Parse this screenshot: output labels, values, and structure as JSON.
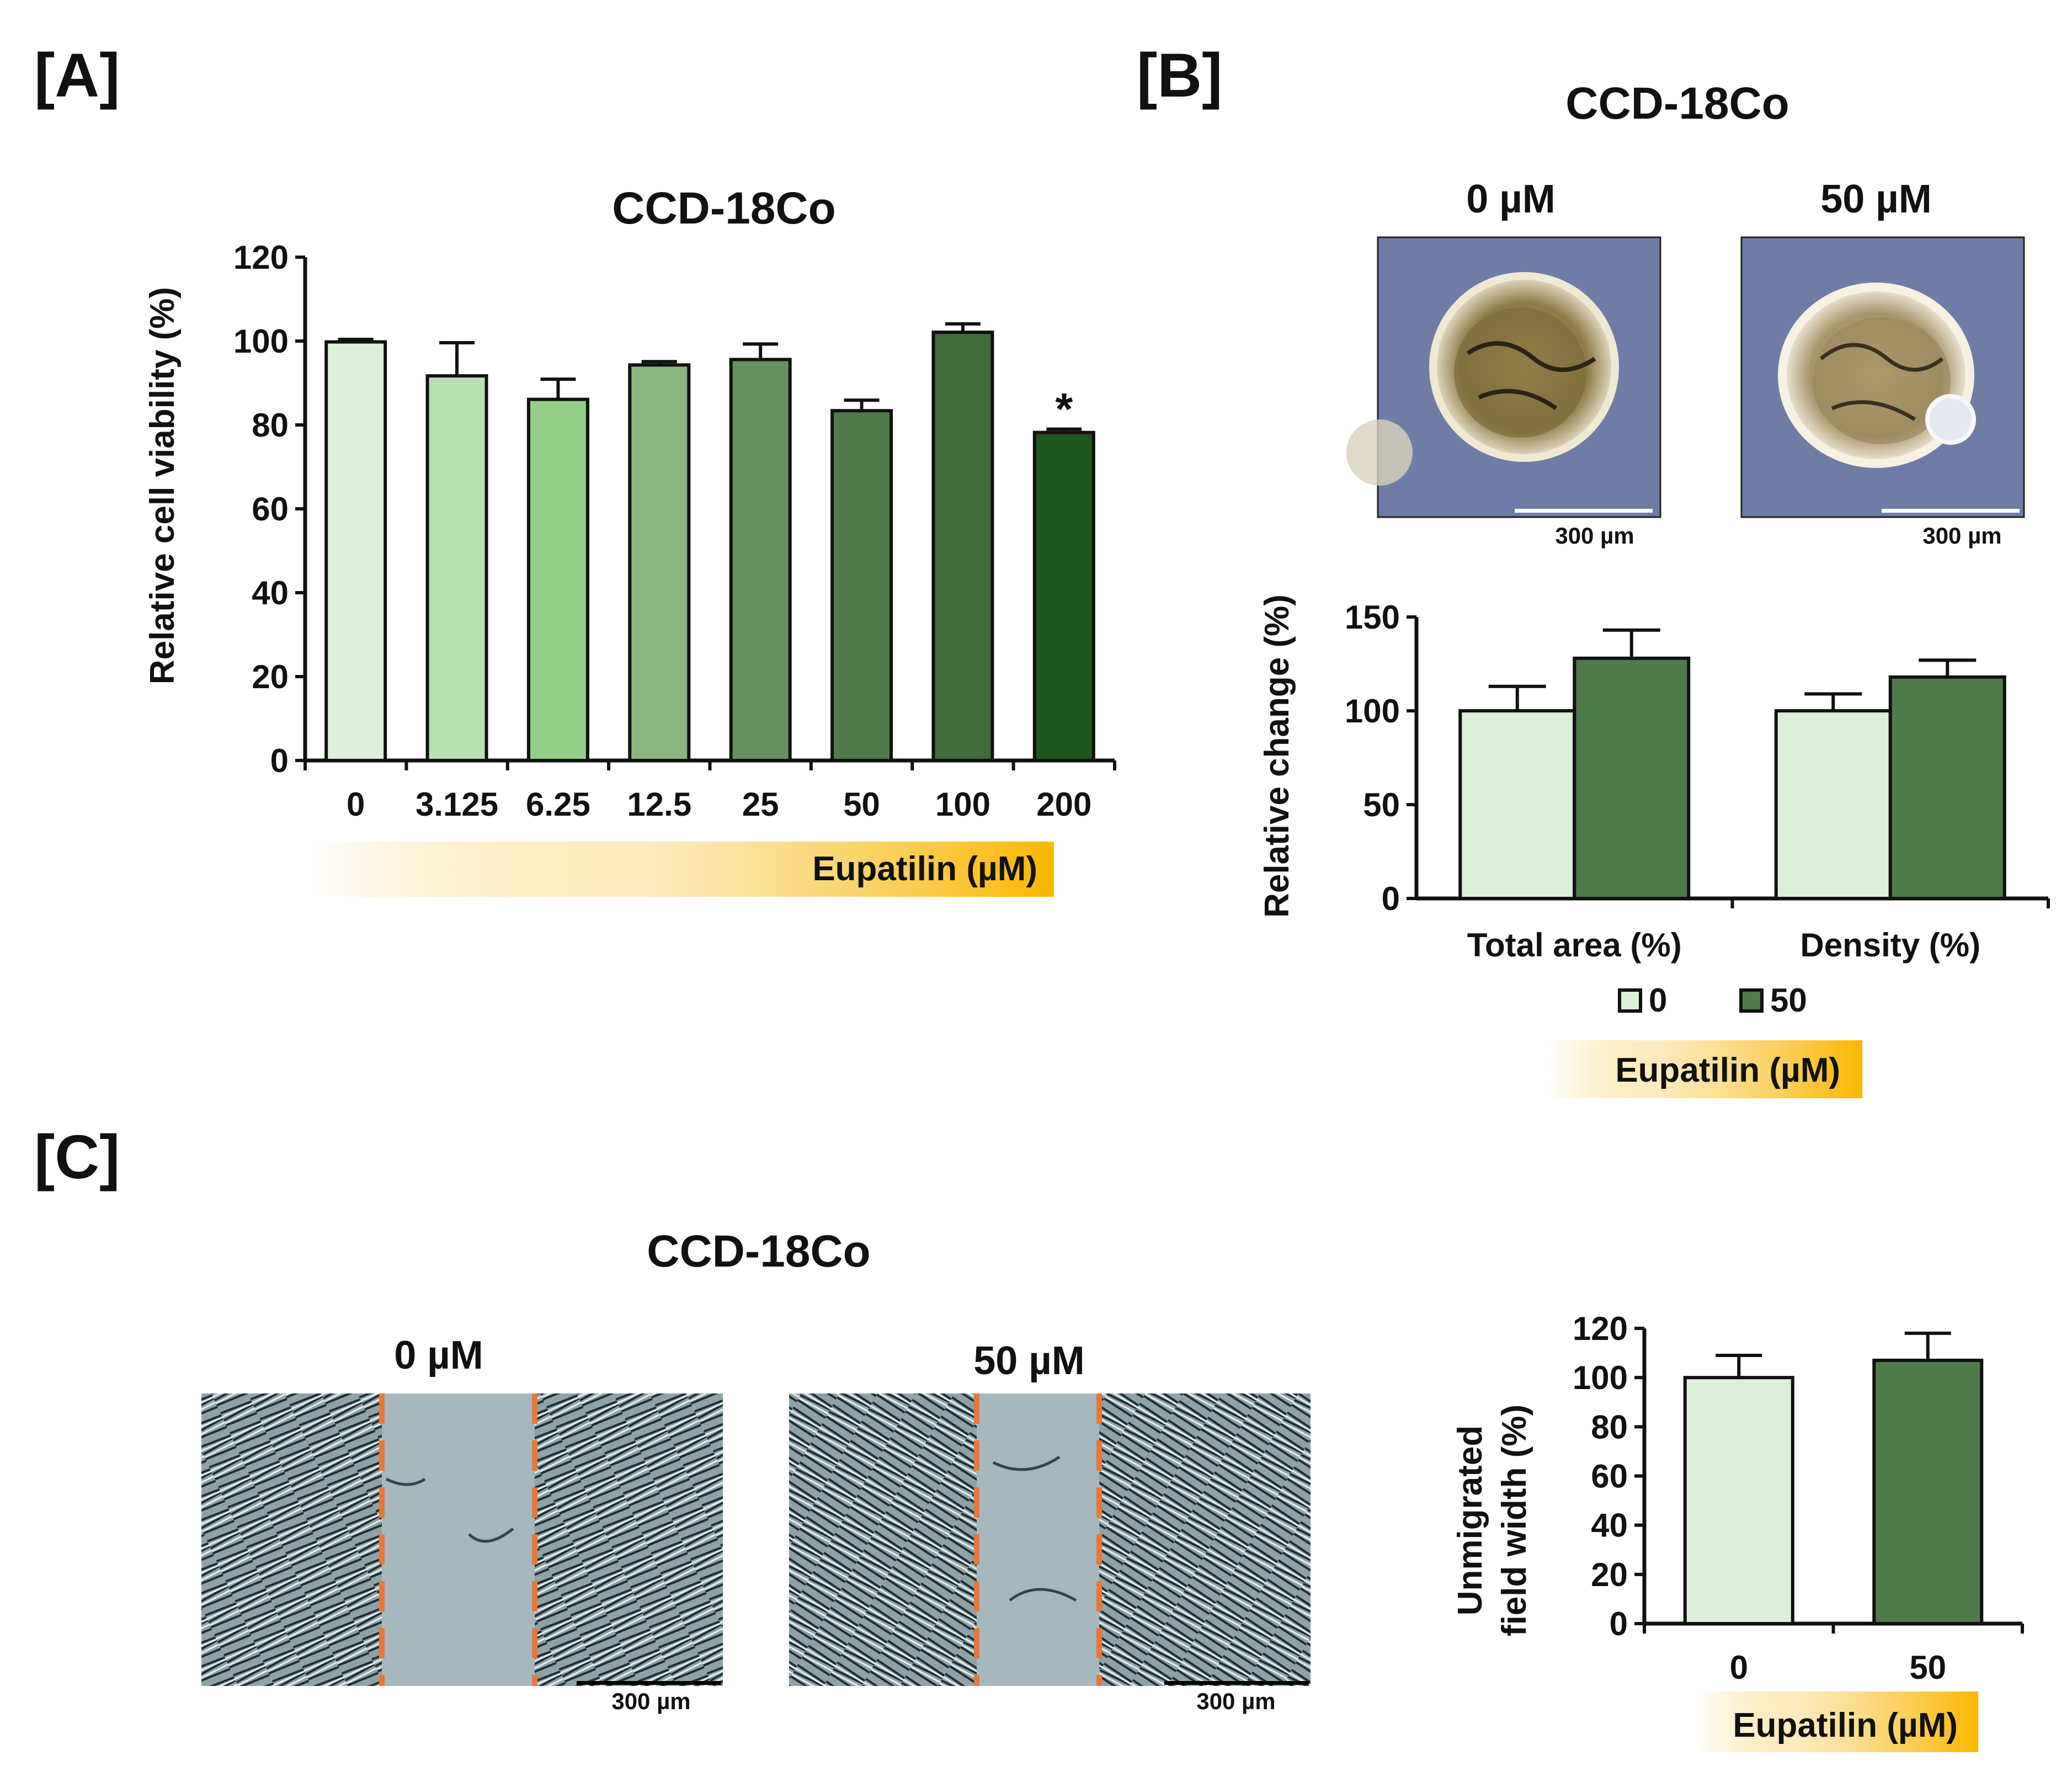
{
  "panels": {
    "a": "[A]",
    "b": "[B]",
    "c": "[C]"
  },
  "panel_a": {
    "title": "CCD-18Co",
    "ylabel": "Relative cell viability  (%)",
    "gradient_label": "Eupatilin (µM)",
    "significance": "*"
  },
  "panel_b": {
    "title": "CCD-18Co",
    "image_left_label": "0 µM",
    "image_right_label": "50 µM",
    "scale_left": "300 µm",
    "scale_right": "300 µm",
    "ylabel": "Relative change  (%)",
    "legend": [
      "0",
      "50"
    ],
    "gradient_label": "Eupatilin (µM)"
  },
  "panel_c": {
    "title": "CCD-18Co",
    "image_left_label": "0 µM",
    "image_right_label": "50 µM",
    "scale_left": "300 µm",
    "scale_right": "300 µm",
    "ylabel_line1": "Unmigrated",
    "ylabel_line2": "field width (%)",
    "gradient_label": "Eupatilin (µM)"
  },
  "colors": {
    "gradient": "#f9b700",
    "light_green": "#dcefd9",
    "dark_green": "#4f7a4a",
    "micrograph_bg": "#6f7da6",
    "wound_bg": "#a6b8bd",
    "dash": "#e8773a"
  },
  "chart_data": [
    {
      "id": "A",
      "type": "bar",
      "title": "CCD-18Co",
      "xlabel": "Eupatilin (µM)",
      "ylabel": "Relative cell viability  (%)",
      "categories": [
        "0",
        "3.125",
        "6.25",
        "12.5",
        "25",
        "50",
        "100",
        "200"
      ],
      "values": [
        99.8,
        91.7,
        86.1,
        94.3,
        95.6,
        83.4,
        102.1,
        78.2
      ],
      "errors": [
        0.6,
        7.9,
        4.8,
        0.8,
        3.7,
        2.5,
        2.0,
        0.8
      ],
      "colors": [
        "#dcefd9",
        "#b9e0b3",
        "#93cf88",
        "#8bb77f",
        "#66905f",
        "#4f7a4a",
        "#3e6b39",
        "#1f561b"
      ],
      "yticks": [
        0,
        20,
        40,
        60,
        80,
        100,
        120
      ],
      "ylim": [
        0,
        120
      ],
      "significant_index": 7
    },
    {
      "id": "B",
      "type": "bar",
      "xlabel": "Eupatilin (µM)",
      "ylabel": "Relative change  (%)",
      "categories": [
        "Total area (%)",
        "Density (%)"
      ],
      "series": [
        {
          "name": "0",
          "values": [
            100,
            100
          ],
          "errors": [
            13,
            9
          ],
          "color": "#dcefd9"
        },
        {
          "name": "50",
          "values": [
            128,
            118
          ],
          "errors": [
            15,
            9
          ],
          "color": "#4f7a4a"
        }
      ],
      "yticks": [
        0,
        50,
        100,
        150
      ],
      "ylim": [
        0,
        150
      ]
    },
    {
      "id": "C",
      "type": "bar",
      "xlabel": "Eupatilin (µM)",
      "ylabel": "Unmigrated field width (%)",
      "categories": [
        "0",
        "50"
      ],
      "values": [
        100,
        107
      ],
      "errors": [
        9,
        11
      ],
      "colors": [
        "#dcefd9",
        "#4f7a4a"
      ],
      "yticks": [
        0,
        20,
        40,
        60,
        80,
        100,
        120
      ],
      "ylim": [
        0,
        120
      ]
    }
  ]
}
